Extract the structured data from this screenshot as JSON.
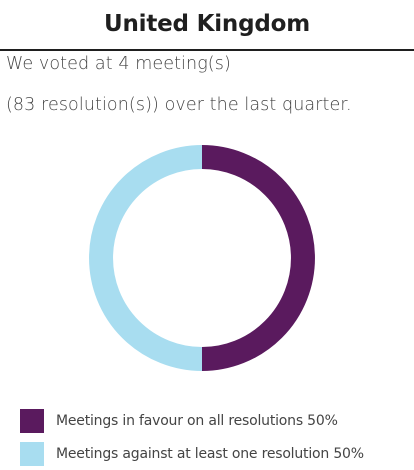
{
  "header": {
    "title": "United Kingdom",
    "line1": "We voted at 4 meeting(s)",
    "line2": "(83 resolution(s)) over the last quarter."
  },
  "colors": {
    "favour": "#5a1a5e",
    "against": "#a8ddf0"
  },
  "chart_data": {
    "type": "pie",
    "subtype": "donut",
    "categories": [
      "Meetings in favour on all resolutions 50%",
      "Meetings against at least one resolution 50%"
    ],
    "values": [
      50,
      50
    ],
    "legend_position": "bottom"
  }
}
